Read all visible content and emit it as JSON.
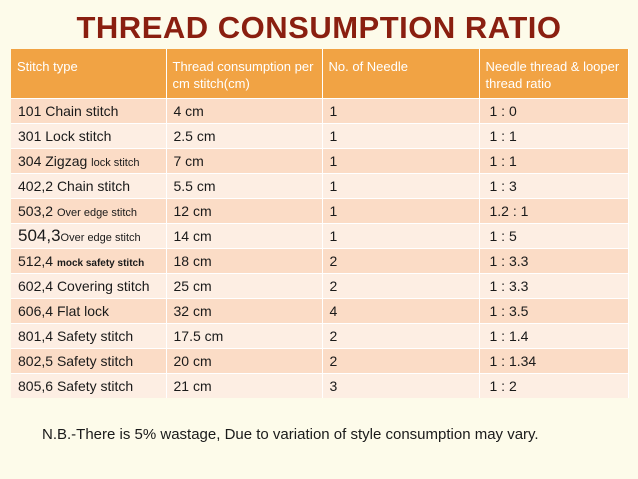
{
  "title": "THREAD  CONSUMPTION RATIO",
  "headers": [
    "Stitch type",
    "Thread consumption per cm stitch(cm)",
    "No. of Needle",
    "Needle thread & looper thread ratio"
  ],
  "rows": [
    {
      "code": "101",
      "name": "Chain stitch",
      "consumption": "4 cm",
      "needles": "1",
      "ratio": "1 : 0"
    },
    {
      "code": "301",
      "name": "Lock stitch",
      "consumption": "2.5 cm",
      "needles": "1",
      "ratio": "1 : 1"
    },
    {
      "code": "304",
      "name": "Zigzag",
      "name_small": "lock stitch",
      "consumption": "7 cm",
      "needles": "1",
      "ratio": "1 : 1"
    },
    {
      "code": "402,2",
      "name": "Chain stitch",
      "consumption": "5.5 cm",
      "needles": "1",
      "ratio": "1 : 3"
    },
    {
      "code": "503,2",
      "name_small": "Over edge stitch",
      "consumption": "12 cm",
      "needles": "1",
      "ratio": "1.2 : 1"
    },
    {
      "code": "504,3",
      "name_small": "Over edge stitch",
      "consumption": "14 cm",
      "needles": "1",
      "ratio": "1 : 5"
    },
    {
      "code": "512,4",
      "name_bold": "mock safety stitch",
      "consumption": "18 cm",
      "needles": "2",
      "ratio": "1 : 3.3"
    },
    {
      "code": "602,4",
      "name": "Covering stitch",
      "consumption": "25 cm",
      "needles": "2",
      "ratio": "1 : 3.3"
    },
    {
      "code": "606,4",
      "name": "Flat lock",
      "consumption": "32 cm",
      "needles": "4",
      "ratio": "1 : 3.5"
    },
    {
      "code": "801,4",
      "name": "Safety stitch",
      "consumption": "17.5 cm",
      "needles": "2",
      "ratio": "1 : 1.4"
    },
    {
      "code": "802,5",
      "name": "Safety stitch",
      "consumption": "20 cm",
      "needles": "2",
      "ratio": "1 : 1.34"
    },
    {
      "code": "805,6",
      "name": "Safety stitch",
      "consumption": "21 cm",
      "needles": "3",
      "ratio": "1 : 2"
    }
  ],
  "note": "N.B.-There is 5% wastage, Due to variation of style consumption may vary."
}
